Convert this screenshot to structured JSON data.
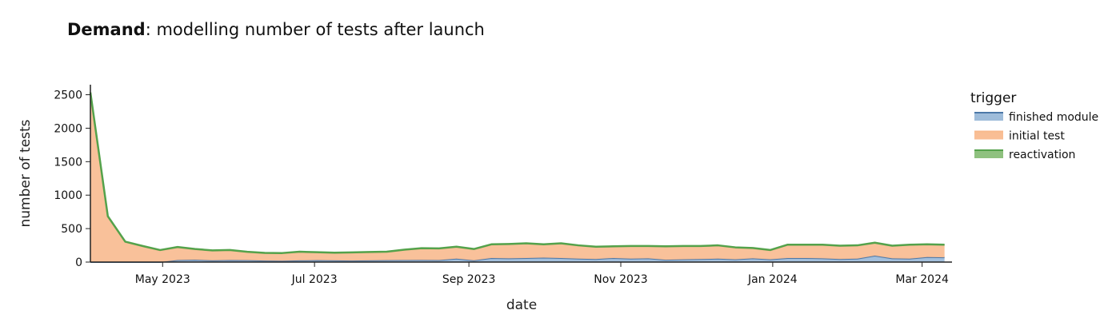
{
  "chart_data": {
    "type": "area",
    "title_bold": "Demand",
    "title_rest": ": modelling number of tests after launch",
    "xlabel": "date",
    "ylabel": "number of tests",
    "ylim": [
      0,
      2650
    ],
    "xlim": [
      "2023-04-02",
      "2024-03-13"
    ],
    "grid": false,
    "legend_position": "right",
    "legend_title": "trigger",
    "x_ticks": [
      {
        "date": "2023-05-01",
        "label": "May 2023"
      },
      {
        "date": "2023-07-01",
        "label": "Jul 2023"
      },
      {
        "date": "2023-09-01",
        "label": "Sep 2023"
      },
      {
        "date": "2023-11-01",
        "label": "Nov 2023"
      },
      {
        "date": "2024-01-01",
        "label": "Jan 2024"
      },
      {
        "date": "2024-03-01",
        "label": "Mar 2024"
      }
    ],
    "y_ticks": [
      0,
      500,
      1000,
      1500,
      2000,
      2500
    ],
    "x": [
      "2023-04-02",
      "2023-04-09",
      "2023-04-16",
      "2023-04-23",
      "2023-04-30",
      "2023-05-07",
      "2023-05-14",
      "2023-05-21",
      "2023-05-28",
      "2023-06-04",
      "2023-06-11",
      "2023-06-18",
      "2023-06-25",
      "2023-07-02",
      "2023-07-09",
      "2023-07-16",
      "2023-07-23",
      "2023-07-30",
      "2023-08-06",
      "2023-08-13",
      "2023-08-20",
      "2023-08-27",
      "2023-09-03",
      "2023-09-10",
      "2023-09-17",
      "2023-09-24",
      "2023-10-01",
      "2023-10-08",
      "2023-10-15",
      "2023-10-22",
      "2023-10-29",
      "2023-11-05",
      "2023-11-12",
      "2023-11-19",
      "2023-11-26",
      "2023-12-03",
      "2023-12-10",
      "2023-12-17",
      "2023-12-24",
      "2023-12-31",
      "2024-01-07",
      "2024-01-14",
      "2024-01-21",
      "2024-01-28",
      "2024-02-04",
      "2024-02-11",
      "2024-02-18",
      "2024-02-25",
      "2024-03-03",
      "2024-03-10"
    ],
    "series": [
      {
        "name": "finished module",
        "color": "#4c78a8",
        "fill": "#9ebcda",
        "values": [
          0,
          0,
          0,
          0,
          0,
          30,
          35,
          25,
          30,
          28,
          22,
          20,
          25,
          28,
          25,
          22,
          25,
          28,
          30,
          32,
          30,
          50,
          25,
          60,
          55,
          60,
          65,
          60,
          50,
          45,
          60,
          50,
          55,
          35,
          40,
          45,
          50,
          40,
          55,
          40,
          60,
          60,
          55,
          45,
          50,
          95,
          55,
          50,
          75,
          70
        ]
      },
      {
        "name": "initial test",
        "color": "#f8b98c",
        "fill": "#f9be95",
        "values": [
          2530,
          680,
          300,
          235,
          175,
          190,
          155,
          145,
          145,
          120,
          110,
          110,
          125,
          115,
          110,
          118,
          120,
          122,
          150,
          170,
          170,
          175,
          165,
          200,
          210,
          215,
          195,
          215,
          195,
          180,
          170,
          185,
          180,
          195,
          195,
          190,
          195,
          175,
          150,
          135,
          195,
          195,
          200,
          195,
          195,
          190,
          185,
          205,
          185,
          185
        ]
      },
      {
        "name": "reactivation",
        "color": "#54a24b",
        "fill": "#8fc17f",
        "values": [
          5,
          5,
          5,
          5,
          5,
          5,
          5,
          5,
          5,
          5,
          5,
          5,
          5,
          5,
          5,
          5,
          5,
          5,
          5,
          5,
          5,
          5,
          5,
          5,
          5,
          5,
          5,
          5,
          5,
          5,
          5,
          5,
          5,
          5,
          5,
          5,
          5,
          5,
          5,
          5,
          5,
          5,
          5,
          5,
          5,
          5,
          5,
          5,
          5,
          5
        ]
      }
    ]
  }
}
